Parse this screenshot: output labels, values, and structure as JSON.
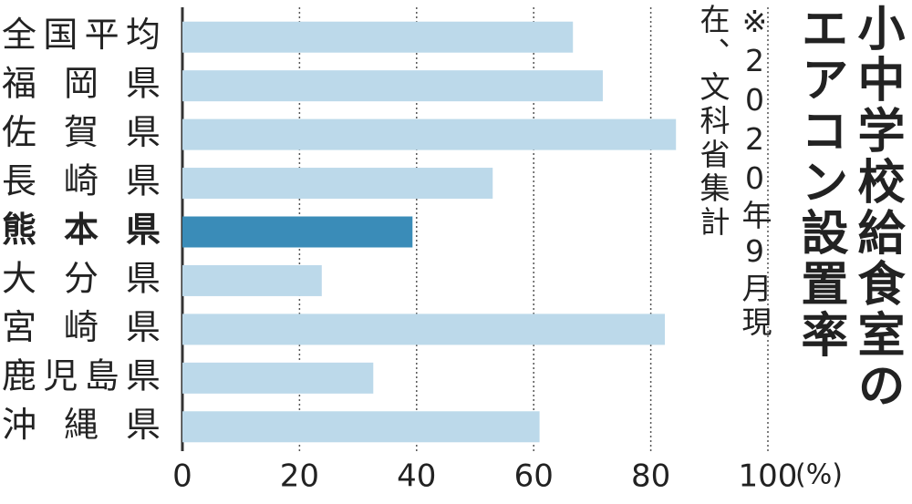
{
  "chart_data": {
    "type": "bar",
    "orientation": "horizontal",
    "title": "小中学校給食室のエアコン設置率",
    "note": "※2020年9月現在、文科省集計",
    "categories": [
      "全国平均",
      "福岡県",
      "佐賀県",
      "長崎県",
      "熊本県",
      "大分県",
      "宮崎県",
      "鹿児島県",
      "沖縄県"
    ],
    "values": [
      66.7,
      71.8,
      84.3,
      53,
      39.3,
      23.8,
      82.4,
      32.6,
      61
    ],
    "colors": [
      "#bcd9ea",
      "#bcd9ea",
      "#bcd9ea",
      "#bcd9ea",
      "#3a8cb8",
      "#bcd9ea",
      "#bcd9ea",
      "#bcd9ea",
      "#bcd9ea"
    ],
    "bold_category": "熊本県",
    "xlim": [
      0,
      100
    ],
    "xticks": [
      0,
      20,
      40,
      60,
      80,
      100
    ],
    "x_unit": "(%)",
    "grid": true
  }
}
